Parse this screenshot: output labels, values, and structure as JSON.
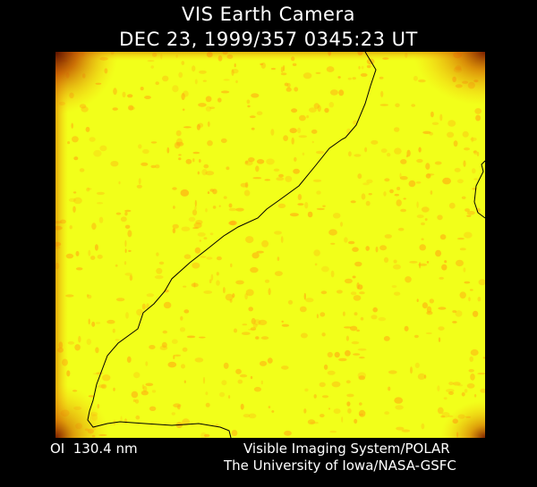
{
  "header": {
    "instrument_title": "VIS Earth Camera",
    "timestamp": "DEC 23, 1999/357 0345:23 UT"
  },
  "image": {
    "description_icon": "earth-camera-image",
    "colors": {
      "background": "#000000",
      "disk": "#f2ff1a",
      "speckle": "#ffb012",
      "edge_dark": "#5a1200",
      "coastline": "#000000"
    }
  },
  "footer": {
    "band": "OI  130.4 nm",
    "instrument": "Visible Imaging System/POLAR",
    "organization": "The University of Iowa/NASA-GSFC"
  }
}
